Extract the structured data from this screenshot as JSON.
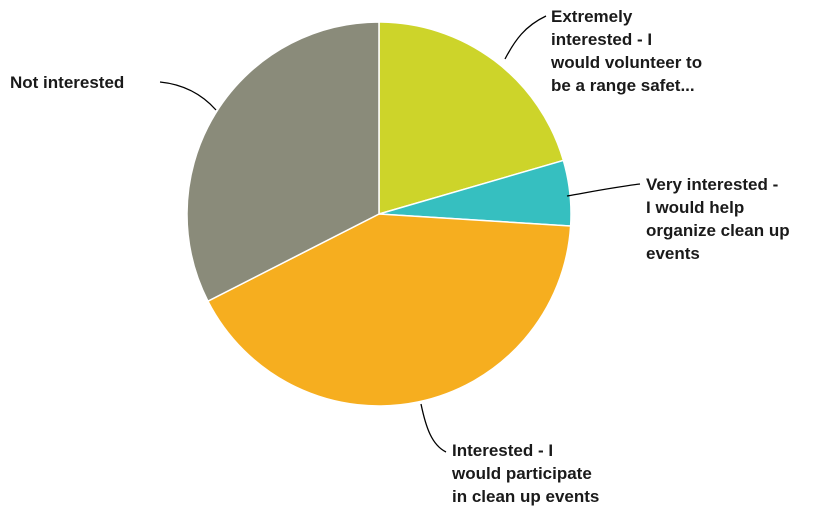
{
  "chart_data": {
    "type": "pie",
    "title": "",
    "start": "top",
    "direction": "clockwise",
    "slices": [
      {
        "name": "Extremely interested - I would volunteer to be a range safet...",
        "label_lines": [
          "Extremely",
          "interested - I",
          "would volunteer to",
          "be a range safet..."
        ],
        "value": 20.5,
        "color": "#CDD42A",
        "label_side": "right"
      },
      {
        "name": "Very interested - I would help organize clean up events",
        "label_lines": [
          "Very interested -",
          "I would help",
          "organize clean up",
          "events"
        ],
        "value": 5.5,
        "color": "#36BFC0",
        "label_side": "right"
      },
      {
        "name": "Interested - I would participate in clean up events",
        "label_lines": [
          "Interested - I",
          "would participate",
          "in clean up events"
        ],
        "value": 41.5,
        "color": "#F6AE1F",
        "label_side": "bottom"
      },
      {
        "name": "Not interested",
        "label_lines": [
          "Not interested"
        ],
        "value": 32.5,
        "color": "#8A8B7A",
        "label_side": "left"
      }
    ]
  }
}
